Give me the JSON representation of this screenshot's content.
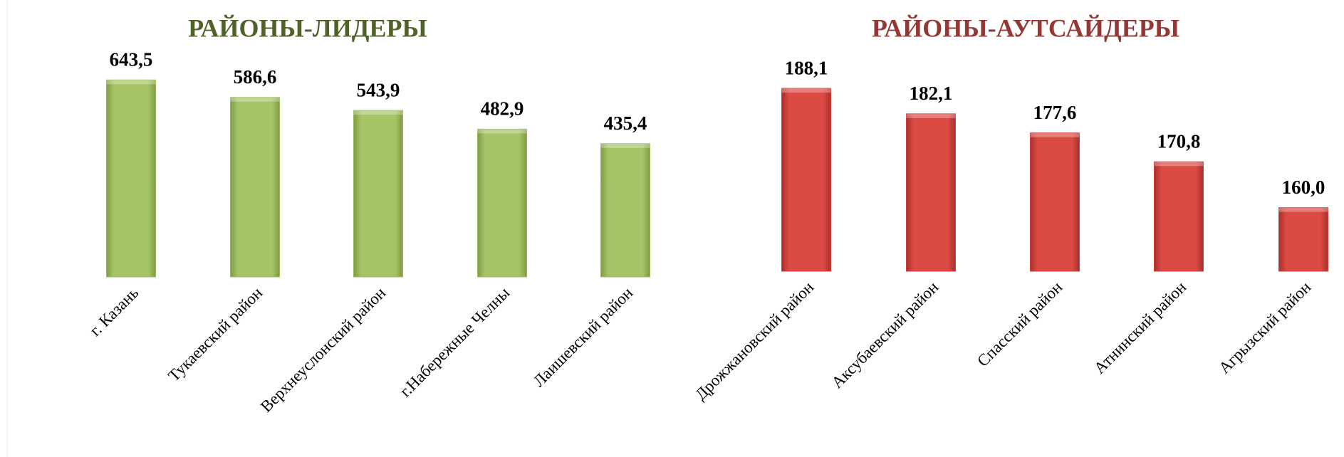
{
  "chart_data": [
    {
      "type": "bar",
      "title": "РАЙОНЫ-ЛИДЕРЫ",
      "title_color": "#4f6228",
      "categories": [
        "г. Казань",
        "Тукаевский район",
        "Верхнеуслонский район",
        "г.Набережные Челны",
        "Лаишевский район"
      ],
      "values": [
        643.5,
        586.6,
        543.9,
        482.9,
        435.4
      ],
      "value_labels": [
        "643,5",
        "586,6",
        "543,9",
        "482,9",
        "435,4"
      ],
      "color": "#9bbb59",
      "ylim": [
        0,
        700
      ]
    },
    {
      "type": "bar",
      "title": "РАЙОНЫ-АУТСАЙДЕРЫ",
      "title_color": "#953735",
      "categories": [
        "Дрожжановский район",
        "Аксубаевский район",
        "Спасский район",
        "Атнинский район",
        "Агрызский район"
      ],
      "values": [
        188.1,
        182.1,
        177.6,
        170.8,
        160.0
      ],
      "value_labels": [
        "188,1",
        "182,1",
        "177,6",
        "170,8",
        "160,0"
      ],
      "color": "#d43f3a",
      "ylim": [
        145,
        195
      ]
    }
  ]
}
